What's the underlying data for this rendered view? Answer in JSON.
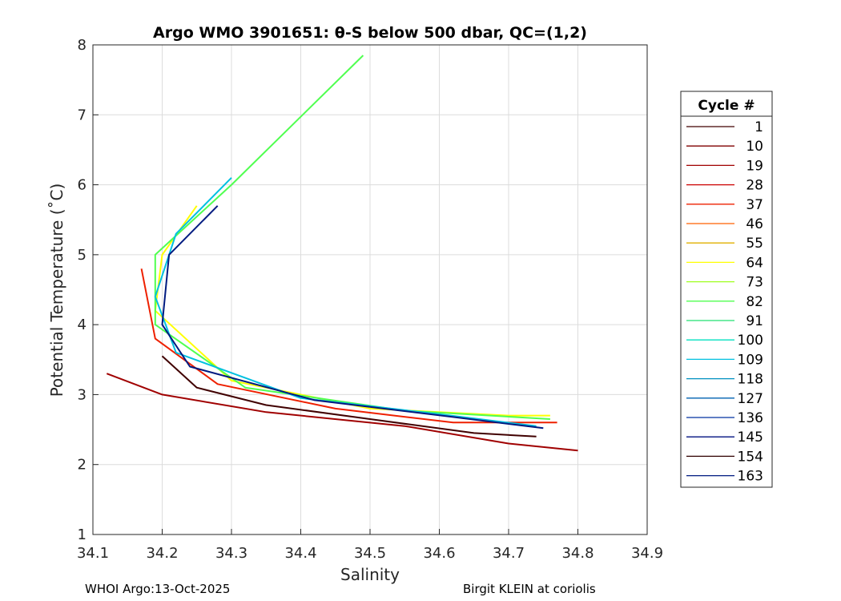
{
  "chart_data": {
    "type": "line",
    "title": "Argo WMO 3901651: θ-S below 500 dbar,  QC=(1,2)",
    "xlabel": "Salinity",
    "ylabel": "Potential Temperature (˚C)",
    "xlim": [
      34.1,
      34.9
    ],
    "ylim": [
      1,
      8
    ],
    "xticks": [
      "34.1",
      "34.2",
      "34.3",
      "34.4",
      "34.5",
      "34.6",
      "34.7",
      "34.8",
      "34.9"
    ],
    "yticks": [
      "1",
      "2",
      "3",
      "4",
      "5",
      "6",
      "7",
      "8"
    ],
    "grid": true,
    "legend": {
      "title": "Cycle #",
      "placement": "right-outside",
      "entries": [
        "1",
        "10",
        "19",
        "28",
        "37",
        "46",
        "55",
        "64",
        "73",
        "82",
        "91",
        "100",
        "109",
        "118",
        "127",
        "136",
        "145",
        "154",
        "163"
      ],
      "colors": [
        "#400000",
        "#800000",
        "#a00000",
        "#cc0000",
        "#ee2000",
        "#ff6000",
        "#e0b000",
        "#ffff00",
        "#a0ff20",
        "#50ff50",
        "#20e070",
        "#00e0c0",
        "#00c0e0",
        "#0090c0",
        "#0060b0",
        "#0030a0",
        "#001080",
        "#300000",
        "#001a80"
      ]
    },
    "series": [
      {
        "name": "1",
        "color": "#400000",
        "salinity": [
          34.2,
          34.25,
          34.35,
          34.5,
          34.65,
          34.74
        ],
        "theta": [
          3.55,
          3.1,
          2.85,
          2.65,
          2.45,
          2.4
        ]
      },
      {
        "name": "19",
        "color": "#a00000",
        "salinity": [
          34.12,
          34.2,
          34.35,
          34.55,
          34.7,
          34.8
        ],
        "theta": [
          3.3,
          3.0,
          2.75,
          2.55,
          2.3,
          2.2
        ]
      },
      {
        "name": "37",
        "color": "#ee2000",
        "salinity": [
          34.17,
          34.19,
          34.28,
          34.45,
          34.62,
          34.77
        ],
        "theta": [
          4.8,
          3.8,
          3.15,
          2.8,
          2.6,
          2.6
        ]
      },
      {
        "name": "64",
        "color": "#ffff00",
        "salinity": [
          34.25,
          34.2,
          34.19,
          34.3,
          34.5,
          34.7,
          34.76
        ],
        "theta": [
          5.7,
          5.0,
          4.2,
          3.2,
          2.8,
          2.7,
          2.7
        ]
      },
      {
        "name": "82",
        "color": "#50ff50",
        "salinity": [
          34.49,
          34.3,
          34.19,
          34.19,
          34.32,
          34.55,
          34.76
        ],
        "theta": [
          7.85,
          6.0,
          5.0,
          4.0,
          3.1,
          2.77,
          2.65
        ]
      },
      {
        "name": "109",
        "color": "#00c0e0",
        "salinity": [
          34.3,
          34.22,
          34.19,
          34.22,
          34.4,
          34.6,
          34.74
        ],
        "theta": [
          6.1,
          5.3,
          4.4,
          3.6,
          2.95,
          2.72,
          2.55
        ]
      },
      {
        "name": "163",
        "color": "#001a80",
        "salinity": [
          34.28,
          34.21,
          34.2,
          34.24,
          34.42,
          34.62,
          34.75
        ],
        "theta": [
          5.7,
          5.0,
          4.0,
          3.4,
          2.92,
          2.68,
          2.52
        ]
      }
    ]
  },
  "footer": {
    "left": "WHOI Argo:13-Oct-2025",
    "right": "Birgit KLEIN at coriolis"
  }
}
